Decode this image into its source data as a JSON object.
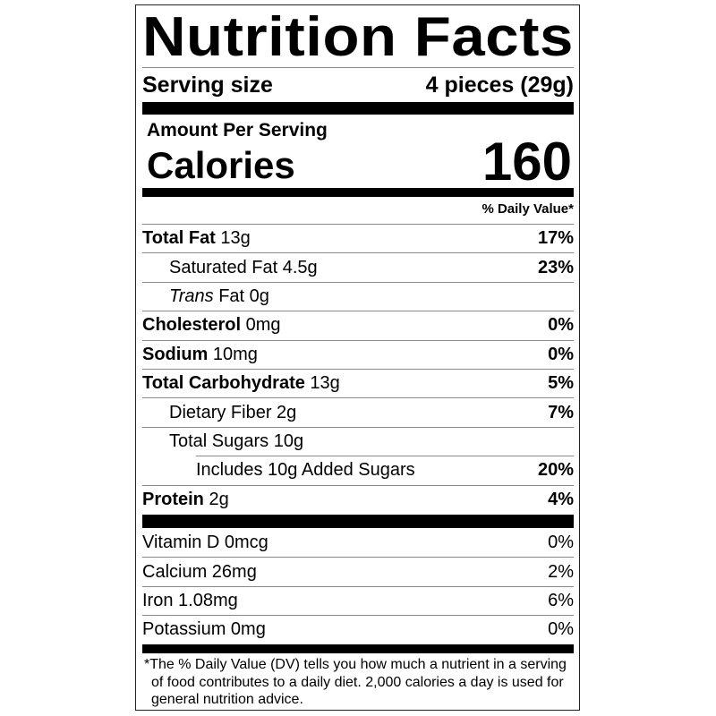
{
  "title": "Nutrition Facts",
  "serving": {
    "label": "Serving size",
    "value": "4 pieces (29g)"
  },
  "amount_per_serving": "Amount Per Serving",
  "calories": {
    "label": "Calories",
    "value": "160"
  },
  "daily_value_header": "% Daily Value*",
  "nutrients": [
    {
      "name": "Total Fat",
      "amount": " 13g",
      "dv": "17%"
    },
    {
      "name": "Saturated Fat 4.5g",
      "amount": "",
      "dv": "23%"
    },
    {
      "name": "Trans",
      "amount": " Fat 0g",
      "dv": ""
    },
    {
      "name": "Cholesterol",
      "amount": " 0mg",
      "dv": "0%"
    },
    {
      "name": "Sodium",
      "amount": " 10mg",
      "dv": "0%"
    },
    {
      "name": "Total Carbohydrate",
      "amount": " 13g",
      "dv": "5%"
    },
    {
      "name": "Dietary Fiber 2g",
      "amount": "",
      "dv": "7%"
    },
    {
      "name": "Total Sugars 10g",
      "amount": "",
      "dv": ""
    },
    {
      "name": "Includes 10g Added Sugars",
      "amount": "",
      "dv": "20%"
    },
    {
      "name": "Protein",
      "amount": " 2g",
      "dv": "4%"
    }
  ],
  "vitamins": [
    {
      "name": "Vitamin D 0mcg",
      "dv": "0%"
    },
    {
      "name": "Calcium 26mg",
      "dv": "2%"
    },
    {
      "name": "Iron 1.08mg",
      "dv": "6%"
    },
    {
      "name": "Potassium 0mg",
      "dv": "0%"
    }
  ],
  "footnote": "*The % Daily Value (DV) tells you how much a nutrient in a serving of food contributes to a daily diet. 2,000 calories a day is used for general nutrition advice."
}
